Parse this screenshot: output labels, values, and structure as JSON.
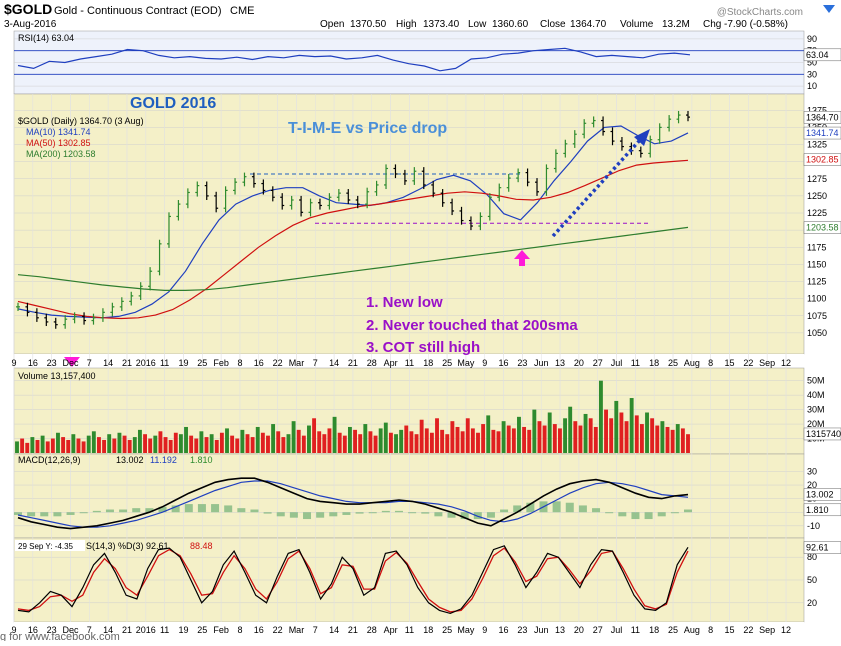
{
  "header": {
    "symbol": "$GOLD",
    "name": "Gold - Continuous Contract (EOD)",
    "exchange": "CME",
    "date": "3-Aug-2016",
    "watermark": "@StockCharts.com",
    "open_label": "Open",
    "open": "1370.50",
    "high_label": "High",
    "high": "1373.40",
    "low_label": "Low",
    "low": "1360.60",
    "close_label": "Close",
    "close": "1364.70",
    "volume_label": "Volume",
    "volume": "13.2M",
    "chg_label": "Chg",
    "chg": "-7.90 (-0.58%)",
    "chg_icon": "down-triangle-icon"
  },
  "colors": {
    "price": "#000000",
    "up": "#2e8b2e",
    "down": "#e02020",
    "ma10": "#1f3fbf",
    "ma50": "#d01010",
    "ma200": "#2e7d2e",
    "annotation_blue": "#1f5fbf",
    "annotation_purple": "#9a10c8",
    "pink_arrow": "#ff1ad9",
    "panel_bg": "#f4f0c8",
    "rsi_bg": "#eef2fb"
  },
  "annotations": {
    "title": "GOLD 2016",
    "subtitle": "T-I-M-E vs Price drop",
    "notes": [
      "1. New low",
      "2. Never touched that 200sma",
      "3. COT still high"
    ],
    "footer": "g for www.facebook.com"
  },
  "chart_data": [
    {
      "type": "line",
      "panel": "rsi",
      "label": "RSI(14) 63.04",
      "value": 63.04,
      "yticks": [
        "90",
        "70",
        "50",
        "30",
        "10"
      ],
      "ylim": [
        0,
        100
      ],
      "levels": [
        70,
        30
      ],
      "right_label": "63.04",
      "y": [
        45,
        40,
        52,
        50,
        56,
        60,
        64,
        72,
        70,
        62,
        58,
        60,
        57,
        56,
        59,
        55,
        60,
        58,
        62,
        60,
        61,
        56,
        58,
        62,
        54,
        48,
        44,
        36,
        40,
        56,
        58,
        64,
        66,
        70,
        72,
        74,
        68,
        60,
        62,
        60,
        58,
        64,
        66,
        63
      ]
    },
    {
      "type": "line",
      "panel": "price",
      "label": "$GOLD (Daily) 1364.70 (3 Aug)",
      "ylim": [
        1025,
        1390
      ],
      "yticks": [
        "1375",
        "1350",
        "1325",
        "1300",
        "1275",
        "1250",
        "1225",
        "1200",
        "1175",
        "1150",
        "1125",
        "1100",
        "1075",
        "1050"
      ],
      "right_labels": [
        "1364.70",
        "1341.74",
        "1302.85",
        "1203.58"
      ],
      "xticks": [
        "9",
        "16",
        "23",
        "Dec",
        "7",
        "14",
        "21",
        "2016",
        "11",
        "19",
        "25",
        "Feb",
        "8",
        "16",
        "22",
        "Mar",
        "7",
        "14",
        "21",
        "28",
        "Apr",
        "11",
        "18",
        "25",
        "May",
        "9",
        "16",
        "23",
        "Jun",
        "13",
        "20",
        "27",
        "Jul",
        "11",
        "18",
        "25",
        "Aug",
        "8",
        "15",
        "22",
        "Sep",
        "12"
      ],
      "series": [
        {
          "name": "MA(10) 1341.74",
          "value": 1341.74,
          "y": [
            1085,
            1080,
            1076,
            1074,
            1073,
            1072,
            1074,
            1080,
            1092,
            1110,
            1140,
            1180,
            1215,
            1238,
            1250,
            1258,
            1262,
            1262,
            1250,
            1240,
            1238,
            1236,
            1240,
            1248,
            1260,
            1274,
            1280,
            1272,
            1252,
            1224,
            1215,
            1240,
            1272,
            1300,
            1330,
            1350,
            1352,
            1338,
            1326,
            1330,
            1342
          ]
        },
        {
          "name": "MA(50) 1302.85",
          "value": 1302.85,
          "y": [
            1096,
            1090,
            1084,
            1078,
            1074,
            1072,
            1071,
            1072,
            1076,
            1084,
            1098,
            1115,
            1135,
            1155,
            1175,
            1192,
            1207,
            1218,
            1225,
            1230,
            1235,
            1238,
            1242,
            1246,
            1250,
            1254,
            1256,
            1254,
            1250,
            1245,
            1244,
            1248,
            1255,
            1265,
            1276,
            1287,
            1295,
            1298,
            1300,
            1302
          ]
        },
        {
          "name": "MA(200) 1203.58",
          "value": 1203.58,
          "y": [
            1135,
            1132,
            1128,
            1124,
            1120,
            1117,
            1114,
            1112,
            1112,
            1113,
            1116,
            1120,
            1124,
            1128,
            1132,
            1136,
            1140,
            1144,
            1148,
            1152,
            1156,
            1160,
            1164,
            1168,
            1172,
            1176,
            1180,
            1184,
            1188,
            1192,
            1196,
            1200,
            1204
          ]
        },
        {
          "name": "close",
          "y": [
            1088,
            1080,
            1072,
            1066,
            1062,
            1070,
            1074,
            1068,
            1072,
            1080,
            1088,
            1096,
            1104,
            1118,
            1140,
            1180,
            1220,
            1238,
            1255,
            1265,
            1250,
            1232,
            1258,
            1270,
            1278,
            1268,
            1258,
            1248,
            1236,
            1244,
            1226,
            1240,
            1236,
            1248,
            1254,
            1244,
            1238,
            1256,
            1266,
            1290,
            1282,
            1272,
            1286,
            1266,
            1254,
            1240,
            1228,
            1214,
            1206,
            1220,
            1248,
            1262,
            1276,
            1284,
            1270,
            1256,
            1290,
            1312,
            1326,
            1340,
            1356,
            1360,
            1344,
            1330,
            1322,
            1316,
            1312,
            1332,
            1350,
            1362,
            1368,
            1365
          ]
        }
      ],
      "resistance_y": 1282,
      "support_y": 1210
    },
    {
      "type": "bar",
      "panel": "volume",
      "label": "Volume 13,157,400",
      "value": 13157400,
      "yticks": [
        "50M",
        "40M",
        "30M",
        "20M",
        "10M"
      ],
      "right_label": "13157400",
      "ylim": [
        0,
        56
      ],
      "values": [
        8,
        10,
        7,
        11,
        9,
        12,
        8,
        10,
        14,
        11,
        9,
        13,
        10,
        8,
        12,
        15,
        11,
        9,
        13,
        10,
        14,
        12,
        9,
        11,
        16,
        13,
        10,
        12,
        15,
        11,
        9,
        14,
        13,
        18,
        12,
        10,
        15,
        11,
        13,
        9,
        14,
        17,
        12,
        10,
        16,
        13,
        11,
        18,
        14,
        12,
        20,
        15,
        11,
        13,
        22,
        16,
        12,
        19,
        24,
        15,
        13,
        17,
        25,
        14,
        12,
        18,
        16,
        13,
        20,
        15,
        12,
        17,
        21,
        14,
        13,
        16,
        19,
        15,
        13,
        23,
        17,
        14,
        24,
        16,
        13,
        22,
        18,
        15,
        24,
        17,
        14,
        20,
        26,
        16,
        15,
        22,
        19,
        17,
        25,
        18,
        16,
        30,
        22,
        19,
        28,
        20,
        17,
        24,
        32,
        22,
        19,
        27,
        24,
        18,
        50,
        30,
        24,
        36,
        28,
        22,
        38,
        26,
        20,
        28,
        24,
        19,
        22,
        18,
        16,
        20,
        17,
        13
      ]
    },
    {
      "type": "line",
      "panel": "macd",
      "label": "MACD(12,26,9)",
      "label_macd": "13.002",
      "label_signal": "11.192",
      "label_hist": "1.810",
      "yticks": [
        "30",
        "20",
        "10",
        "0",
        "-10"
      ],
      "right_labels": [
        "13.002",
        "1.810"
      ],
      "ylim": [
        -16,
        34
      ],
      "series": [
        {
          "name": "MACD",
          "y": [
            -4,
            -7,
            -9,
            -11,
            -12,
            -11,
            -10,
            -8,
            -6,
            -3,
            0,
            4,
            9,
            14,
            18,
            22,
            24,
            25,
            25,
            22,
            18,
            14,
            10,
            8,
            7,
            6,
            6,
            7,
            8,
            9,
            8,
            6,
            3,
            0,
            -4,
            -8,
            -10,
            -5,
            0,
            6,
            12,
            17,
            21,
            23,
            24,
            22,
            18,
            14,
            11,
            10,
            12,
            13
          ]
        },
        {
          "name": "Signal",
          "y": [
            -2,
            -4,
            -6,
            -8,
            -10,
            -11,
            -11,
            -10,
            -8,
            -6,
            -3,
            0,
            4,
            8,
            12,
            16,
            19,
            22,
            23,
            23,
            21,
            18,
            15,
            12,
            10,
            8,
            7,
            7,
            7,
            8,
            8,
            7,
            6,
            4,
            1,
            -3,
            -6,
            -7,
            -5,
            -1,
            4,
            9,
            14,
            18,
            21,
            22,
            21,
            19,
            16,
            13,
            12,
            11
          ]
        }
      ]
    },
    {
      "type": "line",
      "panel": "stochastic",
      "label": "S(14,3) %D(3) 92.61",
      "label_d": "88.48",
      "date_stamp": "29 Sep Y: -4.35",
      "yticks": [
        "80",
        "50",
        "20"
      ],
      "right_label": "92.61",
      "ylim": [
        0,
        100
      ],
      "xticks": [
        "9",
        "16",
        "23",
        "Dec",
        "7",
        "14",
        "21",
        "2016",
        "11",
        "19",
        "25",
        "Feb",
        "8",
        "16",
        "22",
        "Mar",
        "7",
        "14",
        "21",
        "28",
        "Apr",
        "11",
        "18",
        "25",
        "May",
        "9",
        "16",
        "23",
        "Jun",
        "13",
        "20",
        "27",
        "Jul",
        "11",
        "18",
        "25",
        "Aug",
        "8",
        "15",
        "22",
        "Sep",
        "12"
      ],
      "series": [
        {
          "name": "%K",
          "y": [
            10,
            8,
            20,
            35,
            30,
            15,
            40,
            70,
            85,
            60,
            30,
            25,
            65,
            90,
            92,
            80,
            50,
            20,
            35,
            70,
            88,
            60,
            30,
            20,
            55,
            85,
            90,
            60,
            25,
            45,
            80,
            65,
            30,
            40,
            85,
            88,
            70,
            40,
            20,
            10,
            6,
            12,
            30,
            60,
            90,
            95,
            70,
            40,
            60,
            85,
            80,
            60,
            40,
            70,
            90,
            88,
            60,
            30,
            12,
            10,
            20,
            70,
            93
          ]
        },
        {
          "name": "%D",
          "y": [
            12,
            10,
            15,
            28,
            30,
            22,
            30,
            60,
            78,
            65,
            40,
            30,
            55,
            82,
            90,
            82,
            58,
            30,
            32,
            60,
            82,
            65,
            38,
            25,
            48,
            78,
            88,
            65,
            32,
            40,
            70,
            68,
            38,
            38,
            75,
            86,
            72,
            48,
            25,
            14,
            8,
            10,
            25,
            52,
            82,
            92,
            74,
            48,
            55,
            78,
            80,
            64,
            45,
            62,
            85,
            88,
            65,
            38,
            16,
            12,
            18,
            60,
            88
          ]
        }
      ]
    }
  ]
}
